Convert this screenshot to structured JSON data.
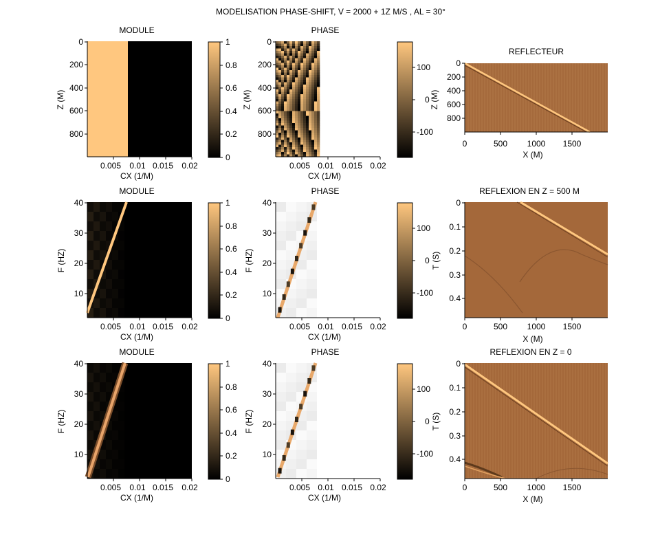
{
  "figure": {
    "title": "MODELISATION PHASE-SHIFT, V = 2000 + 1Z M/S , AL = 30°"
  },
  "colormap": {
    "name": "copper",
    "colors": [
      "#000000",
      "#ffc77f"
    ]
  },
  "chart_data": [
    {
      "id": "module-z",
      "type": "heatmap",
      "title": "MODULE",
      "xlabel": "CX (1/M)",
      "ylabel": "Z (M)",
      "xlim": [
        0,
        0.02
      ],
      "ylim": [
        0,
        1000
      ],
      "x_ticks": [
        "0.005",
        "0.01",
        "0.015",
        "0.02"
      ],
      "y_ticks": [
        "0",
        "200",
        "400",
        "600",
        "800"
      ],
      "y_reversed": true,
      "description_values": {
        "module_where_cx_below_0.008": 1,
        "module_where_cx_above_0.008": 0
      },
      "colorbar": {
        "range": [
          0,
          1
        ],
        "ticks": [
          "0",
          "0.2",
          "0.4",
          "0.6",
          "0.8",
          "1"
        ]
      }
    },
    {
      "id": "phase-z",
      "type": "heatmap",
      "title": "PHASE",
      "xlabel": "CX (1/M)",
      "ylabel": "Z (M)",
      "xlim": [
        0,
        0.02
      ],
      "ylim": [
        0,
        1000
      ],
      "x_ticks": [
        "0.005",
        "0.01",
        "0.015",
        "0.02"
      ],
      "y_ticks": [
        "0",
        "200",
        "400",
        "600",
        "800"
      ],
      "y_reversed": true,
      "colorbar": {
        "range": [
          -180,
          180
        ],
        "ticks": [
          "100",
          "0",
          "-100"
        ]
      }
    },
    {
      "id": "reflecteur",
      "type": "heatmap",
      "title": "REFLECTEUR",
      "xlabel": "X (M)",
      "ylabel": "Z (M)",
      "xlim": [
        0,
        2000
      ],
      "ylim": [
        0,
        1000
      ],
      "x_ticks": [
        "0",
        "500",
        "1000",
        "1500"
      ],
      "y_ticks": [
        "0",
        "200",
        "400",
        "600",
        "800"
      ],
      "y_reversed": true,
      "reflector_line": {
        "x": [
          0,
          1750
        ],
        "z": [
          0,
          1000
        ]
      }
    },
    {
      "id": "module-f-500",
      "type": "heatmap",
      "title": "MODULE",
      "xlabel": "CX (1/M)",
      "ylabel": "F (HZ)",
      "xlim": [
        0,
        0.02
      ],
      "ylim": [
        2,
        40
      ],
      "x_ticks": [
        "0.005",
        "0.01",
        "0.015",
        "0.02"
      ],
      "y_ticks": [
        "40",
        "30",
        "20",
        "10"
      ],
      "band_line": {
        "cx": [
          0,
          0.0075
        ],
        "f": [
          2,
          40
        ]
      },
      "colorbar": {
        "range": [
          0,
          1
        ],
        "ticks": [
          "0",
          "0.2",
          "0.4",
          "0.6",
          "0.8",
          "1"
        ]
      }
    },
    {
      "id": "phase-f-500",
      "type": "heatmap",
      "title": "PHASE",
      "xlabel": "CX (1/M)",
      "ylabel": "F (HZ)",
      "xlim": [
        0,
        0.02
      ],
      "ylim": [
        2,
        40
      ],
      "x_ticks": [
        "0.005",
        "0.01",
        "0.015",
        "0.02"
      ],
      "y_ticks": [
        "40",
        "30",
        "20",
        "10"
      ],
      "band_line": {
        "cx": [
          0.0007,
          0.0083
        ],
        "f": [
          2,
          40
        ]
      },
      "colorbar": {
        "range": [
          -180,
          180
        ],
        "ticks": [
          "100",
          "0",
          "-100"
        ]
      }
    },
    {
      "id": "reflexion-500",
      "type": "heatmap",
      "title": "REFLEXION EN Z = 500 M",
      "xlabel": "X (M)",
      "ylabel": "T (S)",
      "xlim": [
        0,
        2000
      ],
      "ylim": [
        0,
        0.48
      ],
      "x_ticks": [
        "0",
        "500",
        "1000",
        "1500"
      ],
      "y_ticks": [
        "0",
        "0.1",
        "0.2",
        "0.3",
        "0.4"
      ],
      "y_reversed": true,
      "event_line": {
        "x": [
          770,
          2000
        ],
        "t": [
          0,
          0.21
        ]
      }
    },
    {
      "id": "module-f-0",
      "type": "heatmap",
      "title": "MODULE",
      "xlabel": "CX (1/M)",
      "ylabel": "F (HZ)",
      "xlim": [
        0,
        0.02
      ],
      "ylim": [
        2,
        40
      ],
      "x_ticks": [
        "0.005",
        "0.01",
        "0.015",
        "0.02"
      ],
      "y_ticks": [
        "40",
        "30",
        "20",
        "10"
      ],
      "band_line": {
        "cx": [
          0,
          0.0075
        ],
        "f": [
          2,
          40
        ]
      },
      "colorbar": {
        "range": [
          0,
          1
        ],
        "ticks": [
          "0",
          "0.2",
          "0.4",
          "0.6",
          "0.8",
          "1"
        ]
      }
    },
    {
      "id": "phase-f-0",
      "type": "heatmap",
      "title": "PHASE",
      "xlabel": "CX (1/M)",
      "ylabel": "F (HZ)",
      "xlim": [
        0,
        0.02
      ],
      "ylim": [
        2,
        40
      ],
      "x_ticks": [
        "0.005",
        "0.01",
        "0.015",
        "0.02"
      ],
      "y_ticks": [
        "40",
        "30",
        "20",
        "10"
      ],
      "band_line": {
        "cx": [
          0.0007,
          0.0083
        ],
        "f": [
          2,
          40
        ]
      },
      "colorbar": {
        "range": [
          -180,
          180
        ],
        "ticks": [
          "100",
          "0",
          "-100"
        ]
      }
    },
    {
      "id": "reflexion-0",
      "type": "heatmap",
      "title": "REFLEXION EN Z = 0",
      "xlabel": "X (M)",
      "ylabel": "T (S)",
      "xlim": [
        0,
        2000
      ],
      "ylim": [
        0,
        0.48
      ],
      "x_ticks": [
        "0",
        "500",
        "1000",
        "1500"
      ],
      "y_ticks": [
        "0",
        "0.1",
        "0.2",
        "0.3",
        "0.4"
      ],
      "y_reversed": true,
      "event_line": {
        "x": [
          0,
          2000
        ],
        "t": [
          0,
          0.41
        ]
      }
    }
  ]
}
